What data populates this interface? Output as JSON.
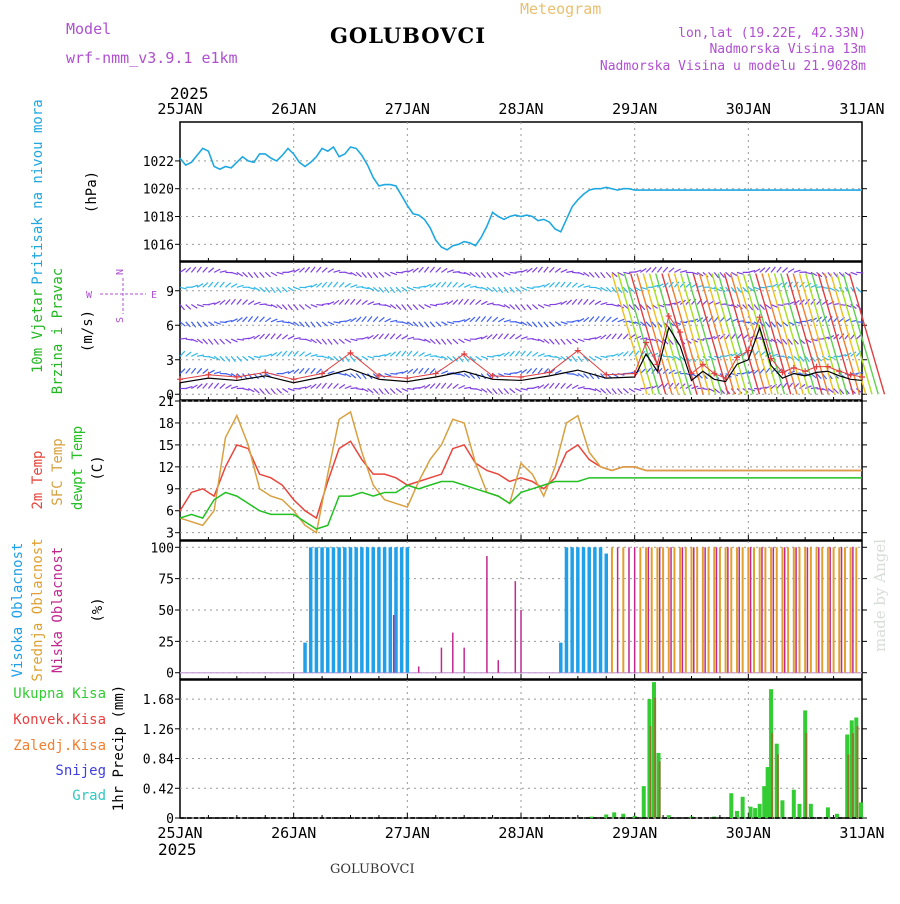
{
  "header": {
    "title": "GOLUBOVCI",
    "meteogram_label": "Meteogram",
    "model_label": "Model",
    "model_name": "wrf-nmm_v3.9.1 e1km",
    "lonlat": "lon,lat (19.22E, 42.33N)",
    "elevation": "Nadmorska Visina 13m",
    "model_elevation": "Nadmorska Visina u modelu 21.9028m",
    "credit": "made by Angel",
    "footer_title": "GOLUBOVCI"
  },
  "colors": {
    "pressure": "#1fa8e0",
    "wind_label": "#22b822",
    "temp2m": "#e8453c",
    "sfc_temp": "#d8a040",
    "dewpoint": "#22c022",
    "cloud_high": "#1fa0e8",
    "cloud_mid": "#e0a030",
    "cloud_low": "#c02890",
    "precip_total": "#33cc33",
    "precip_conv": "#e84040",
    "precip_frozen": "#f08030",
    "precip_snow": "#4040e0",
    "precip_graupel": "#30c8c0",
    "title_meteogram": "#e8c070",
    "header_purple": "#b050d0"
  },
  "time_axis": {
    "year": "2025",
    "labels": [
      "25JAN",
      "26JAN",
      "27JAN",
      "28JAN",
      "29JAN",
      "30JAN",
      "31JAN"
    ],
    "days": 6
  },
  "chart_data": [
    {
      "type": "line",
      "name": "pressure",
      "ylabel": "Pritisak na nivou mora",
      "unit": "(hPa)",
      "ylim": [
        1014.8,
        1024.8
      ],
      "yticks": [
        1016,
        1018,
        1020,
        1022
      ],
      "grid": true,
      "x": [
        0,
        0.05,
        0.1,
        0.15,
        0.2,
        0.25,
        0.3,
        0.35,
        0.4,
        0.45,
        0.5,
        0.55,
        0.6,
        0.65,
        0.7,
        0.75,
        0.8,
        0.85,
        0.9,
        0.95,
        1.0,
        1.05,
        1.1,
        1.15,
        1.2,
        1.25,
        1.3,
        1.35,
        1.4,
        1.45,
        1.5,
        1.55,
        1.6,
        1.65,
        1.7,
        1.75,
        1.8,
        1.85,
        1.9,
        1.95,
        2.0,
        2.05,
        2.1,
        2.15,
        2.2,
        2.25,
        2.3,
        2.35,
        2.4,
        2.45,
        2.5,
        2.55,
        2.6,
        2.65,
        2.7,
        2.75,
        2.8,
        2.85,
        2.9,
        2.95,
        3.0,
        3.05,
        3.1,
        3.15,
        3.2,
        3.25,
        3.3,
        3.35,
        3.4,
        3.45,
        3.5,
        3.55,
        3.6,
        3.65,
        3.7,
        3.75,
        3.8,
        3.85,
        3.9,
        3.95,
        4.0,
        4.05,
        4.1,
        4.15,
        4.2,
        4.25,
        4.3,
        4.35,
        4.4,
        4.45,
        4.5,
        4.55,
        4.6,
        4.65,
        4.7,
        4.75,
        4.8,
        4.85,
        4.9,
        4.95,
        5.0,
        5.05,
        5.1,
        5.15,
        5.2,
        5.25,
        5.3,
        5.35,
        5.4,
        5.45,
        5.5,
        5.55,
        5.6,
        5.65,
        5.7,
        5.75,
        5.8,
        5.85,
        5.9,
        5.95,
        6.0
      ],
      "values": [
        1022.2,
        1021.7,
        1021.9,
        1022.4,
        1022.9,
        1022.7,
        1021.6,
        1021.4,
        1021.6,
        1021.5,
        1021.9,
        1022.3,
        1022.0,
        1021.9,
        1022.5,
        1022.5,
        1022.2,
        1022.0,
        1022.4,
        1022.9,
        1022.5,
        1021.9,
        1021.6,
        1021.9,
        1022.3,
        1022.9,
        1022.7,
        1023.0,
        1022.3,
        1022.5,
        1023.0,
        1022.9,
        1022.4,
        1021.7,
        1020.8,
        1020.2,
        1020.3,
        1020.3,
        1020.2,
        1019.5,
        1018.8,
        1018.2,
        1018.1,
        1017.8,
        1017.2,
        1016.3,
        1015.8,
        1015.6,
        1015.9,
        1016.0,
        1016.2,
        1016.1,
        1015.9,
        1016.5,
        1017.3,
        1018.3,
        1018.0,
        1017.8,
        1018.0,
        1018.1,
        1018.0,
        1018.1,
        1018.0,
        1017.7,
        1017.8,
        1017.6,
        1017.1,
        1016.9,
        1017.8,
        1018.7,
        1019.2,
        1019.6,
        1019.9,
        1020.0,
        1020.0,
        1020.1,
        1020.0,
        1019.9,
        1020.0,
        1020.0,
        1019.9,
        1019.9,
        1019.9,
        1019.9,
        1019.9,
        1019.9,
        1019.9,
        1019.9,
        1019.9,
        1019.9,
        1019.9,
        1019.9,
        1019.9,
        1019.9,
        1019.9,
        1019.9,
        1019.9,
        1019.9,
        1019.9,
        1019.9,
        1019.9,
        1019.9,
        1019.9,
        1019.9,
        1019.9,
        1019.9,
        1019.9,
        1019.9,
        1019.9,
        1019.9,
        1019.9,
        1019.9,
        1019.9,
        1019.9,
        1019.9,
        1019.9,
        1019.9,
        1019.9,
        1019.9,
        1019.9,
        1019.9
      ]
    },
    {
      "type": "line",
      "name": "wind",
      "ylabel_1": "10m Vjetar",
      "ylabel_2": "Brzina i Pravac",
      "unit": "(m/s)",
      "ylim": [
        -0.5,
        11.5
      ],
      "yticks": [
        0,
        3,
        6,
        9
      ],
      "grid": true,
      "compass": {
        "n": "N",
        "s": "S",
        "e": "E",
        "w": "W"
      },
      "x": [
        0,
        0.25,
        0.5,
        0.75,
        1.0,
        1.25,
        1.5,
        1.75,
        2.0,
        2.25,
        2.5,
        2.75,
        3.0,
        3.25,
        3.5,
        3.75,
        4.0,
        4.1,
        4.2,
        4.3,
        4.4,
        4.5,
        4.6,
        4.7,
        4.8,
        4.9,
        5.0,
        5.1,
        5.2,
        5.3,
        5.4,
        5.5,
        5.6,
        5.7,
        5.8,
        5.9,
        6.0
      ],
      "values": [
        1.0,
        1.4,
        1.2,
        1.6,
        1.0,
        1.5,
        2.2,
        1.3,
        1.1,
        1.5,
        2.0,
        1.3,
        1.2,
        1.6,
        2.1,
        1.4,
        1.5,
        3.5,
        2.0,
        5.8,
        4.2,
        1.2,
        2.0,
        1.3,
        1.1,
        2.6,
        3.0,
        5.8,
        2.5,
        1.4,
        1.8,
        1.6,
        1.9,
        2.0,
        1.6,
        1.3,
        1.2
      ],
      "gust": [
        1.3,
        1.7,
        1.5,
        1.9,
        1.3,
        1.8,
        3.6,
        1.6,
        1.4,
        1.8,
        3.5,
        1.6,
        1.5,
        1.9,
        3.8,
        1.7,
        1.8,
        4.5,
        2.6,
        6.8,
        5.4,
        1.8,
        2.6,
        1.8,
        1.4,
        3.2,
        3.8,
        6.7,
        3.1,
        1.9,
        2.3,
        2.0,
        2.4,
        2.4,
        2.0,
        1.7,
        1.5
      ]
    },
    {
      "type": "line",
      "name": "temperature",
      "ylabel_1": "2m Temp",
      "ylabel_2": "SFC Temp",
      "ylabel_3": "dewpt Temp",
      "unit": "(C)",
      "ylim": [
        2.0,
        21.0
      ],
      "yticks": [
        3,
        6,
        9,
        12,
        15,
        18,
        21
      ],
      "grid": true,
      "x": [
        0,
        0.1,
        0.2,
        0.3,
        0.4,
        0.5,
        0.6,
        0.7,
        0.8,
        0.9,
        1.0,
        1.1,
        1.2,
        1.3,
        1.4,
        1.5,
        1.6,
        1.7,
        1.8,
        1.9,
        2.0,
        2.1,
        2.2,
        2.3,
        2.4,
        2.5,
        2.6,
        2.7,
        2.8,
        2.9,
        3.0,
        3.1,
        3.2,
        3.3,
        3.4,
        3.5,
        3.6,
        3.7,
        3.8,
        3.9,
        4.0,
        4.1,
        4.2,
        4.3,
        4.4,
        4.5,
        4.6,
        4.7,
        4.8,
        4.9,
        5.0,
        5.1,
        5.2,
        5.3,
        5.4,
        5.5,
        5.6,
        5.7,
        5.8,
        5.9,
        6.0
      ],
      "series": [
        {
          "name": "2m Temp",
          "values": [
            6.0,
            8.5,
            9.0,
            8.0,
            12.0,
            15.0,
            14.5,
            11.0,
            10.5,
            9.5,
            7.5,
            6.0,
            5.0,
            10.0,
            14.5,
            15.5,
            13.0,
            11.0,
            11.0,
            10.5,
            9.5,
            10.0,
            10.5,
            11.0,
            14.5,
            15.0,
            12.5,
            11.5,
            11.0,
            10.0,
            10.5,
            10.0,
            9.0,
            10.5,
            14.0,
            15.0,
            13.0,
            12.0,
            11.5,
            12.0,
            12.0,
            11.5,
            11.5,
            11.5,
            11.5,
            11.5,
            11.5,
            11.5,
            11.5,
            11.5,
            11.5,
            11.5,
            11.5,
            11.5,
            11.5,
            11.5,
            11.5,
            11.5,
            11.5,
            11.5,
            11.5
          ]
        },
        {
          "name": "SFC Temp",
          "values": [
            5.0,
            4.5,
            4.0,
            6.0,
            16.0,
            19.0,
            15.0,
            9.0,
            8.0,
            7.5,
            6.0,
            4.0,
            3.0,
            11.0,
            18.5,
            19.5,
            14.0,
            9.5,
            7.5,
            7.0,
            6.5,
            10.0,
            13.0,
            15.0,
            18.5,
            18.0,
            12.5,
            8.5,
            8.0,
            7.0,
            12.5,
            11.0,
            8.0,
            12.0,
            18.0,
            19.0,
            14.0,
            12.0,
            11.5,
            12.0,
            12.0,
            11.5,
            11.5,
            11.5,
            11.5,
            11.5,
            11.5,
            11.5,
            11.5,
            11.5,
            11.5,
            11.5,
            11.5,
            11.5,
            11.5,
            11.5,
            11.5,
            11.5,
            11.5,
            11.5,
            11.5
          ]
        },
        {
          "name": "dewpt Temp",
          "values": [
            5.0,
            5.5,
            5.0,
            7.5,
            8.5,
            8.0,
            7.0,
            6.0,
            5.5,
            5.5,
            5.5,
            4.5,
            3.5,
            4.0,
            8.0,
            8.0,
            8.5,
            8.0,
            8.5,
            8.5,
            9.5,
            9.0,
            9.5,
            10.0,
            10.0,
            9.5,
            9.0,
            8.5,
            8.0,
            7.0,
            8.5,
            9.0,
            9.5,
            10.0,
            10.0,
            10.0,
            10.5,
            10.5,
            10.5,
            10.5,
            10.5,
            10.5,
            10.5,
            10.5,
            10.5,
            10.5,
            10.5,
            10.5,
            10.5,
            10.5,
            10.5,
            10.5,
            10.5,
            10.5,
            10.5,
            10.5,
            10.5,
            10.5,
            10.5,
            10.5,
            10.5
          ]
        }
      ]
    },
    {
      "type": "bar",
      "name": "clouds",
      "ylabel_1": "Visoka Oblacnost",
      "ylabel_2": "Srednja Oblacnost",
      "ylabel_3": "Niska Oblacnost",
      "unit": "(%)",
      "ylim": [
        -5,
        105
      ],
      "yticks": [
        0,
        25,
        50,
        75,
        100
      ],
      "grid": true,
      "high": [
        [
          1.1,
          24
        ],
        [
          1.15,
          100
        ],
        [
          1.2,
          100
        ],
        [
          1.25,
          100
        ],
        [
          1.3,
          100
        ],
        [
          1.35,
          100
        ],
        [
          1.4,
          100
        ],
        [
          1.45,
          100
        ],
        [
          1.5,
          100
        ],
        [
          1.55,
          100
        ],
        [
          1.6,
          100
        ],
        [
          1.65,
          100
        ],
        [
          1.7,
          100
        ],
        [
          1.75,
          100
        ],
        [
          1.8,
          100
        ],
        [
          1.85,
          100
        ],
        [
          1.9,
          100
        ],
        [
          1.95,
          100
        ],
        [
          2.0,
          100
        ],
        [
          3.35,
          24
        ],
        [
          3.4,
          100
        ],
        [
          3.45,
          100
        ],
        [
          3.5,
          100
        ],
        [
          3.55,
          100
        ],
        [
          3.6,
          100
        ],
        [
          3.65,
          100
        ],
        [
          3.7,
          100
        ],
        [
          3.75,
          95
        ]
      ],
      "mid": [
        [
          3.8,
          100
        ],
        [
          3.9,
          100
        ],
        [
          4.05,
          100
        ],
        [
          4.1,
          100
        ],
        [
          4.15,
          100
        ],
        [
          4.2,
          100
        ],
        [
          4.25,
          100
        ],
        [
          4.3,
          100
        ],
        [
          4.35,
          100
        ],
        [
          4.4,
          100
        ],
        [
          4.45,
          100
        ],
        [
          4.5,
          100
        ],
        [
          4.55,
          100
        ],
        [
          4.6,
          100
        ],
        [
          4.65,
          100
        ],
        [
          4.7,
          100
        ],
        [
          4.75,
          100
        ],
        [
          4.8,
          100
        ],
        [
          4.85,
          100
        ],
        [
          4.9,
          100
        ],
        [
          4.95,
          100
        ],
        [
          5.0,
          100
        ],
        [
          5.05,
          100
        ],
        [
          5.1,
          100
        ],
        [
          5.15,
          100
        ],
        [
          5.2,
          100
        ],
        [
          5.25,
          100
        ],
        [
          5.3,
          100
        ],
        [
          5.35,
          100
        ],
        [
          5.4,
          100
        ],
        [
          5.45,
          100
        ],
        [
          5.5,
          100
        ],
        [
          5.55,
          100
        ],
        [
          5.6,
          100
        ],
        [
          5.65,
          100
        ],
        [
          5.7,
          100
        ],
        [
          5.75,
          100
        ],
        [
          5.8,
          100
        ],
        [
          5.85,
          100
        ],
        [
          5.9,
          100
        ],
        [
          5.95,
          100
        ]
      ],
      "low": [
        [
          1.88,
          46
        ],
        [
          2.1,
          5
        ],
        [
          2.3,
          20
        ],
        [
          2.4,
          32
        ],
        [
          2.5,
          20
        ],
        [
          2.7,
          93
        ],
        [
          2.8,
          10
        ],
        [
          2.95,
          73
        ],
        [
          3.0,
          50
        ],
        [
          3.85,
          100
        ],
        [
          3.95,
          100
        ],
        [
          4.0,
          100
        ],
        [
          4.12,
          100
        ],
        [
          4.22,
          100
        ],
        [
          4.32,
          100
        ],
        [
          4.42,
          100
        ],
        [
          4.52,
          100
        ],
        [
          4.62,
          100
        ],
        [
          4.72,
          100
        ],
        [
          4.82,
          100
        ],
        [
          4.92,
          100
        ],
        [
          5.02,
          100
        ],
        [
          5.12,
          100
        ],
        [
          5.22,
          100
        ],
        [
          5.32,
          100
        ],
        [
          5.42,
          100
        ],
        [
          5.52,
          100
        ],
        [
          5.62,
          100
        ],
        [
          5.72,
          100
        ],
        [
          5.82,
          100
        ],
        [
          5.92,
          100
        ]
      ]
    },
    {
      "type": "bar",
      "name": "precip",
      "unit": "1hr Precip (mm)",
      "legend": [
        "Ukupna Kisa",
        "Konvek.Kisa",
        "Zaledj.Kisa",
        "Snijeg",
        "Grad"
      ],
      "ylim": [
        0,
        1.95
      ],
      "yticks": [
        0,
        0.42,
        0.84,
        1.26,
        1.68
      ],
      "grid": true,
      "total": [
        [
          3.62,
          0.02
        ],
        [
          3.75,
          0.05
        ],
        [
          3.82,
          0.08
        ],
        [
          3.9,
          0.06
        ],
        [
          4.0,
          0.03
        ],
        [
          4.08,
          0.45
        ],
        [
          4.13,
          1.68
        ],
        [
          4.17,
          1.92
        ],
        [
          4.21,
          0.92
        ],
        [
          4.3,
          0.04
        ],
        [
          4.5,
          0.02
        ],
        [
          4.7,
          0.02
        ],
        [
          4.85,
          0.35
        ],
        [
          4.9,
          0.1
        ],
        [
          4.95,
          0.3
        ],
        [
          5.02,
          0.16
        ],
        [
          5.06,
          0.14
        ],
        [
          5.1,
          0.2
        ],
        [
          5.14,
          0.45
        ],
        [
          5.17,
          0.72
        ],
        [
          5.2,
          1.82
        ],
        [
          5.25,
          1.05
        ],
        [
          5.3,
          0.25
        ],
        [
          5.4,
          0.4
        ],
        [
          5.45,
          0.2
        ],
        [
          5.5,
          1.52
        ],
        [
          5.55,
          0.2
        ],
        [
          5.7,
          0.15
        ],
        [
          5.78,
          0.06
        ],
        [
          5.87,
          1.18
        ],
        [
          5.91,
          1.38
        ],
        [
          5.95,
          1.42
        ],
        [
          5.99,
          0.22
        ]
      ],
      "convective": [
        [
          4.14,
          1.3
        ],
        [
          4.18,
          1.7
        ],
        [
          4.22,
          0.8
        ],
        [
          5.21,
          1.2
        ],
        [
          5.26,
          0.9
        ],
        [
          5.51,
          1.2
        ],
        [
          5.88,
          0.9
        ],
        [
          5.92,
          1.2
        ],
        [
          5.96,
          1.3
        ]
      ]
    }
  ]
}
